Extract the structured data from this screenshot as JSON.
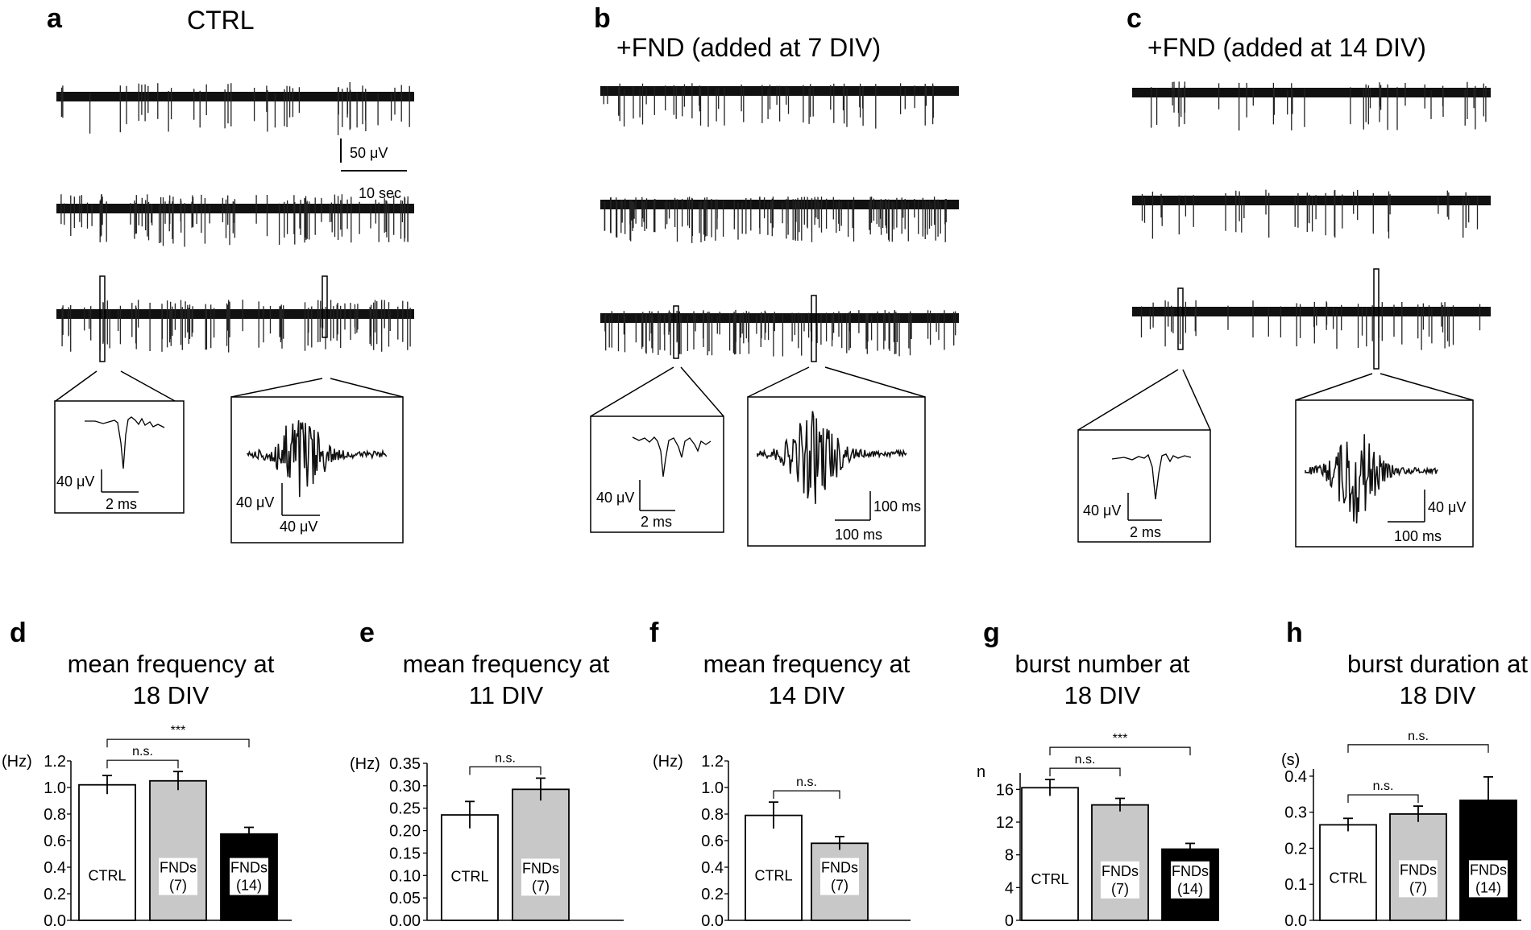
{
  "traces": {
    "panels": [
      {
        "letter": "a",
        "title": "CTRL",
        "scale_bar": {
          "voltage": "50 μV",
          "time": "10 sec"
        },
        "insets": [
          {
            "scale_v": "40 μV",
            "scale_t": "2 ms"
          },
          {
            "scale_v": "40 μV",
            "scale_t": "40 μV"
          }
        ]
      },
      {
        "letter": "b",
        "title": "+FND (added at 7 DIV)",
        "insets": [
          {
            "scale_v": "40 μV",
            "scale_t": "2 ms"
          },
          {
            "scale_v": "100 ms",
            "scale_t": "100 ms"
          }
        ]
      },
      {
        "letter": "c",
        "title": "+FND  (added at 14 DIV)",
        "insets": [
          {
            "scale_v": "40 μV",
            "scale_t": "2 ms"
          },
          {
            "scale_v": "40 μV",
            "scale_t": "100 ms"
          }
        ]
      }
    ]
  },
  "chart_data": [
    {
      "type": "bar",
      "letter": "d",
      "title": [
        "mean frequency at",
        "18 DIV"
      ],
      "unit": "(Hz)",
      "ylim": [
        0,
        1.2
      ],
      "ticks": [
        "0.0",
        "0.2",
        "0.4",
        "0.6",
        "0.8",
        "1.0",
        "1.2"
      ],
      "categories": [
        "CTRL",
        "FNDs\n(7)",
        "FNDs\n(14)"
      ],
      "values": [
        1.02,
        1.05,
        0.65
      ],
      "errors": [
        0.07,
        0.07,
        0.05
      ],
      "fills": [
        "#ffffff",
        "#c8c8c8",
        "#000000"
      ],
      "significance": [
        {
          "from": 0,
          "to": 1,
          "label": "n.s."
        },
        {
          "from": 0,
          "to": 2,
          "label": "***"
        }
      ]
    },
    {
      "type": "bar",
      "letter": "e",
      "title": [
        "mean frequency at",
        "11 DIV"
      ],
      "unit": "(Hz)",
      "ylim": [
        0,
        0.35
      ],
      "ticks": [
        "0.00",
        "0.05",
        "0.10",
        "0.15",
        "0.20",
        "0.25",
        "0.30",
        "0.35"
      ],
      "categories": [
        "CTRL",
        "FNDs\n(7)"
      ],
      "values": [
        0.235,
        0.292
      ],
      "errors": [
        0.03,
        0.025
      ],
      "fills": [
        "#ffffff",
        "#c8c8c8"
      ],
      "significance": [
        {
          "from": 0,
          "to": 1,
          "label": "n.s."
        }
      ]
    },
    {
      "type": "bar",
      "letter": "f",
      "title": [
        "mean frequency at",
        "14 DIV"
      ],
      "unit": "(Hz)",
      "ylim": [
        0,
        1.2
      ],
      "ticks": [
        "0.0",
        "0.2",
        "0.4",
        "0.6",
        "0.8",
        "1.0",
        "1.2"
      ],
      "categories": [
        "CTRL",
        "FNDs\n(7)"
      ],
      "values": [
        0.79,
        0.58
      ],
      "errors": [
        0.1,
        0.05
      ],
      "fills": [
        "#ffffff",
        "#c8c8c8"
      ],
      "significance": [
        {
          "from": 0,
          "to": 1,
          "label": "n.s."
        }
      ]
    },
    {
      "type": "bar",
      "letter": "g",
      "title": [
        "burst number at",
        "18 DIV"
      ],
      "unit": "n",
      "ylim": [
        0,
        18
      ],
      "ticks": [
        "0",
        "4",
        "8",
        "12",
        "16"
      ],
      "tick_values": [
        0,
        4,
        8,
        12,
        16
      ],
      "categories": [
        "CTRL",
        "FNDs\n(7)",
        "FNDs\n(14)"
      ],
      "values": [
        16.2,
        14.1,
        8.7
      ],
      "errors": [
        1.0,
        0.8,
        0.7
      ],
      "fills": [
        "#ffffff",
        "#c8c8c8",
        "#000000"
      ],
      "significance": [
        {
          "from": 0,
          "to": 1,
          "label": "n.s."
        },
        {
          "from": 0,
          "to": 2,
          "label": "***"
        }
      ]
    },
    {
      "type": "bar",
      "letter": "h",
      "title": [
        "burst duration at",
        "18 DIV"
      ],
      "unit": "(s)",
      "ylim": [
        0,
        0.42
      ],
      "ticks": [
        "0.0",
        "0.1",
        "0.2",
        "0.3",
        "0.4"
      ],
      "tick_values": [
        0,
        0.1,
        0.2,
        0.3,
        0.4
      ],
      "categories": [
        "CTRL",
        "FNDs\n(7)",
        "FNDs\n(14)"
      ],
      "values": [
        0.265,
        0.295,
        0.333
      ],
      "errors": [
        0.018,
        0.022,
        0.065
      ],
      "fills": [
        "#ffffff",
        "#c8c8c8",
        "#000000"
      ],
      "significance": [
        {
          "from": 0,
          "to": 1,
          "label": "n.s."
        },
        {
          "from": 0,
          "to": 2,
          "label": "n.s."
        }
      ]
    }
  ]
}
